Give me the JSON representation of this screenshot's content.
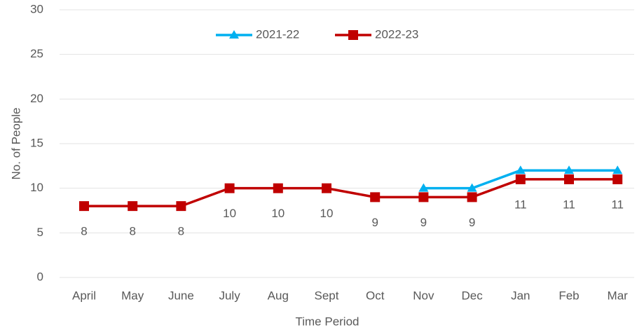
{
  "chart_data": {
    "type": "line",
    "x_label": "Time Period",
    "y_label": "No. of People",
    "categories": [
      "April",
      "May",
      "June",
      "July",
      "Aug",
      "Sept",
      "Oct",
      "Nov",
      "Dec",
      "Jan",
      "Feb",
      "Mar"
    ],
    "series": [
      {
        "name": "2021-22",
        "color": "#00b0f0",
        "marker": "triangle",
        "data_labels": false,
        "values": [
          null,
          null,
          null,
          null,
          null,
          null,
          null,
          10,
          10,
          12,
          12,
          12
        ]
      },
      {
        "name": "2022-23",
        "color": "#c00000",
        "marker": "square",
        "data_labels": true,
        "values": [
          8,
          8,
          8,
          10,
          10,
          10,
          9,
          9,
          9,
          11,
          11,
          11
        ]
      }
    ],
    "ylim": [
      0,
      30
    ],
    "yticks": [
      0,
      5,
      10,
      15,
      20,
      25,
      30
    ],
    "grid": true,
    "legend": "top"
  }
}
